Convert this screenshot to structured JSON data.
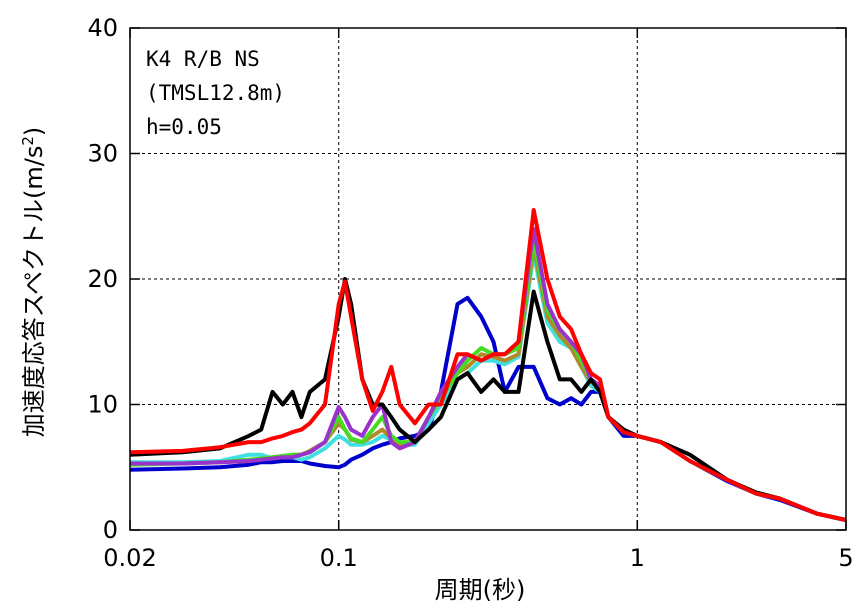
{
  "chart_data": {
    "type": "line",
    "ylabel": [
      "加速度応答スペクトル(m/s",
      "2",
      ")"
    ],
    "xlabel": "周期(秒)",
    "annotations": [
      "K4 R/B NS",
      "(TMSL12.8m)",
      "h=0.05"
    ],
    "xscale": "log",
    "grid": true,
    "xlim": [
      0.02,
      5
    ],
    "xticks": [
      0.02,
      0.1,
      1,
      5
    ],
    "ylim": [
      0,
      40
    ],
    "yticks": [
      0,
      10,
      20,
      30,
      40
    ],
    "x": [
      0.02,
      0.03,
      0.04,
      0.05,
      0.055,
      0.06,
      0.065,
      0.07,
      0.075,
      0.08,
      0.09,
      0.1,
      0.105,
      0.11,
      0.12,
      0.13,
      0.14,
      0.15,
      0.16,
      0.18,
      0.2,
      0.22,
      0.25,
      0.27,
      0.3,
      0.33,
      0.36,
      0.4,
      0.45,
      0.5,
      0.55,
      0.6,
      0.65,
      0.7,
      0.75,
      0.8,
      0.9,
      1,
      1.2,
      1.5,
      2,
      2.5,
      3,
      4,
      5
    ],
    "series": [
      {
        "color": "#0000cc",
        "values": [
          4.8,
          4.9,
          5,
          5.2,
          5.4,
          5.4,
          5.5,
          5.5,
          5.5,
          5.3,
          5.1,
          5,
          5.2,
          5.6,
          6,
          6.5,
          6.8,
          7,
          7.3,
          7.5,
          8,
          11,
          18,
          18.5,
          17,
          15,
          11,
          13,
          13,
          10.5,
          10,
          10.5,
          10,
          11,
          11,
          9,
          7.5,
          7.5,
          7,
          5.5,
          3.9,
          2.9,
          2.4,
          1.3,
          0.8
        ]
      },
      {
        "color": "#40e0e0",
        "values": [
          5.4,
          5.4,
          5.5,
          6,
          6,
          5.7,
          5.8,
          5.8,
          5.6,
          5.8,
          6.5,
          7.5,
          7.2,
          6.8,
          6.8,
          7,
          7.5,
          7.2,
          6.8,
          6.8,
          8.5,
          10,
          12,
          12.5,
          13.5,
          13.5,
          13.2,
          13.8,
          22,
          16.5,
          15,
          14.5,
          13,
          11.5,
          11,
          9,
          7.8,
          7.5,
          7,
          5.5,
          4,
          2.9,
          2.5,
          1.3,
          0.8
        ]
      },
      {
        "color": "#b08a2a",
        "values": [
          5.3,
          5.3,
          5.4,
          5.5,
          5.6,
          5.8,
          5.9,
          6,
          6,
          6.3,
          7,
          8.5,
          8,
          7.2,
          7,
          7.5,
          8,
          7.3,
          6.8,
          7,
          9,
          10.5,
          12.5,
          13,
          14,
          13.8,
          13.5,
          14,
          22.5,
          17,
          15.5,
          14.5,
          13,
          11.8,
          11.5,
          9,
          7.8,
          7.5,
          7,
          5.5,
          4,
          2.9,
          2.5,
          1.3,
          0.8
        ]
      },
      {
        "color": "#44dd22",
        "values": [
          5.2,
          5.3,
          5.4,
          5.6,
          5.7,
          5.8,
          5.9,
          6,
          6,
          6.2,
          7,
          9,
          8,
          7.3,
          7,
          8,
          9,
          7.5,
          7,
          7,
          9,
          10.5,
          12.5,
          13.5,
          14.5,
          14,
          14,
          14.5,
          23,
          17.5,
          16,
          15,
          13.5,
          12,
          11.5,
          9,
          7.8,
          7.5,
          7,
          5.5,
          4,
          2.9,
          2.5,
          1.3,
          0.8
        ]
      },
      {
        "color": "#9933cc",
        "values": [
          5.3,
          5.3,
          5.4,
          5.5,
          5.6,
          5.7,
          5.8,
          5.8,
          6,
          6.2,
          7,
          9.8,
          9,
          8,
          7.5,
          9,
          10,
          7,
          6.5,
          7,
          9,
          11,
          13,
          14,
          13.5,
          14,
          14,
          15,
          24,
          18,
          16,
          15,
          14,
          12,
          11.5,
          9,
          7.8,
          7.5,
          7,
          5.5,
          4,
          2.9,
          2.5,
          1.3,
          0.8
        ]
      },
      {
        "color": "#000000",
        "values": [
          6,
          6.2,
          6.5,
          7.5,
          8,
          11,
          10,
          11,
          9,
          11,
          12,
          17,
          20,
          18,
          12,
          10,
          10,
          9,
          8,
          7,
          8,
          9,
          12,
          12.5,
          11,
          12,
          11,
          11,
          19,
          15,
          12,
          12,
          11,
          12,
          11,
          9,
          8,
          7.5,
          7,
          6,
          4,
          3,
          2.5,
          1.3,
          0.8
        ]
      },
      {
        "color": "#ff0000",
        "values": [
          6.2,
          6.3,
          6.6,
          7,
          7,
          7.3,
          7.5,
          7.8,
          8,
          8.5,
          10,
          18,
          19.8,
          17,
          12,
          9.5,
          11,
          13,
          10,
          8.5,
          10,
          10,
          14,
          14,
          13.5,
          14,
          14,
          15,
          25.5,
          20,
          17,
          16,
          14,
          12.5,
          12,
          9,
          7.8,
          7.5,
          7,
          5.5,
          4,
          2.9,
          2.5,
          1.3,
          0.8
        ]
      }
    ]
  }
}
